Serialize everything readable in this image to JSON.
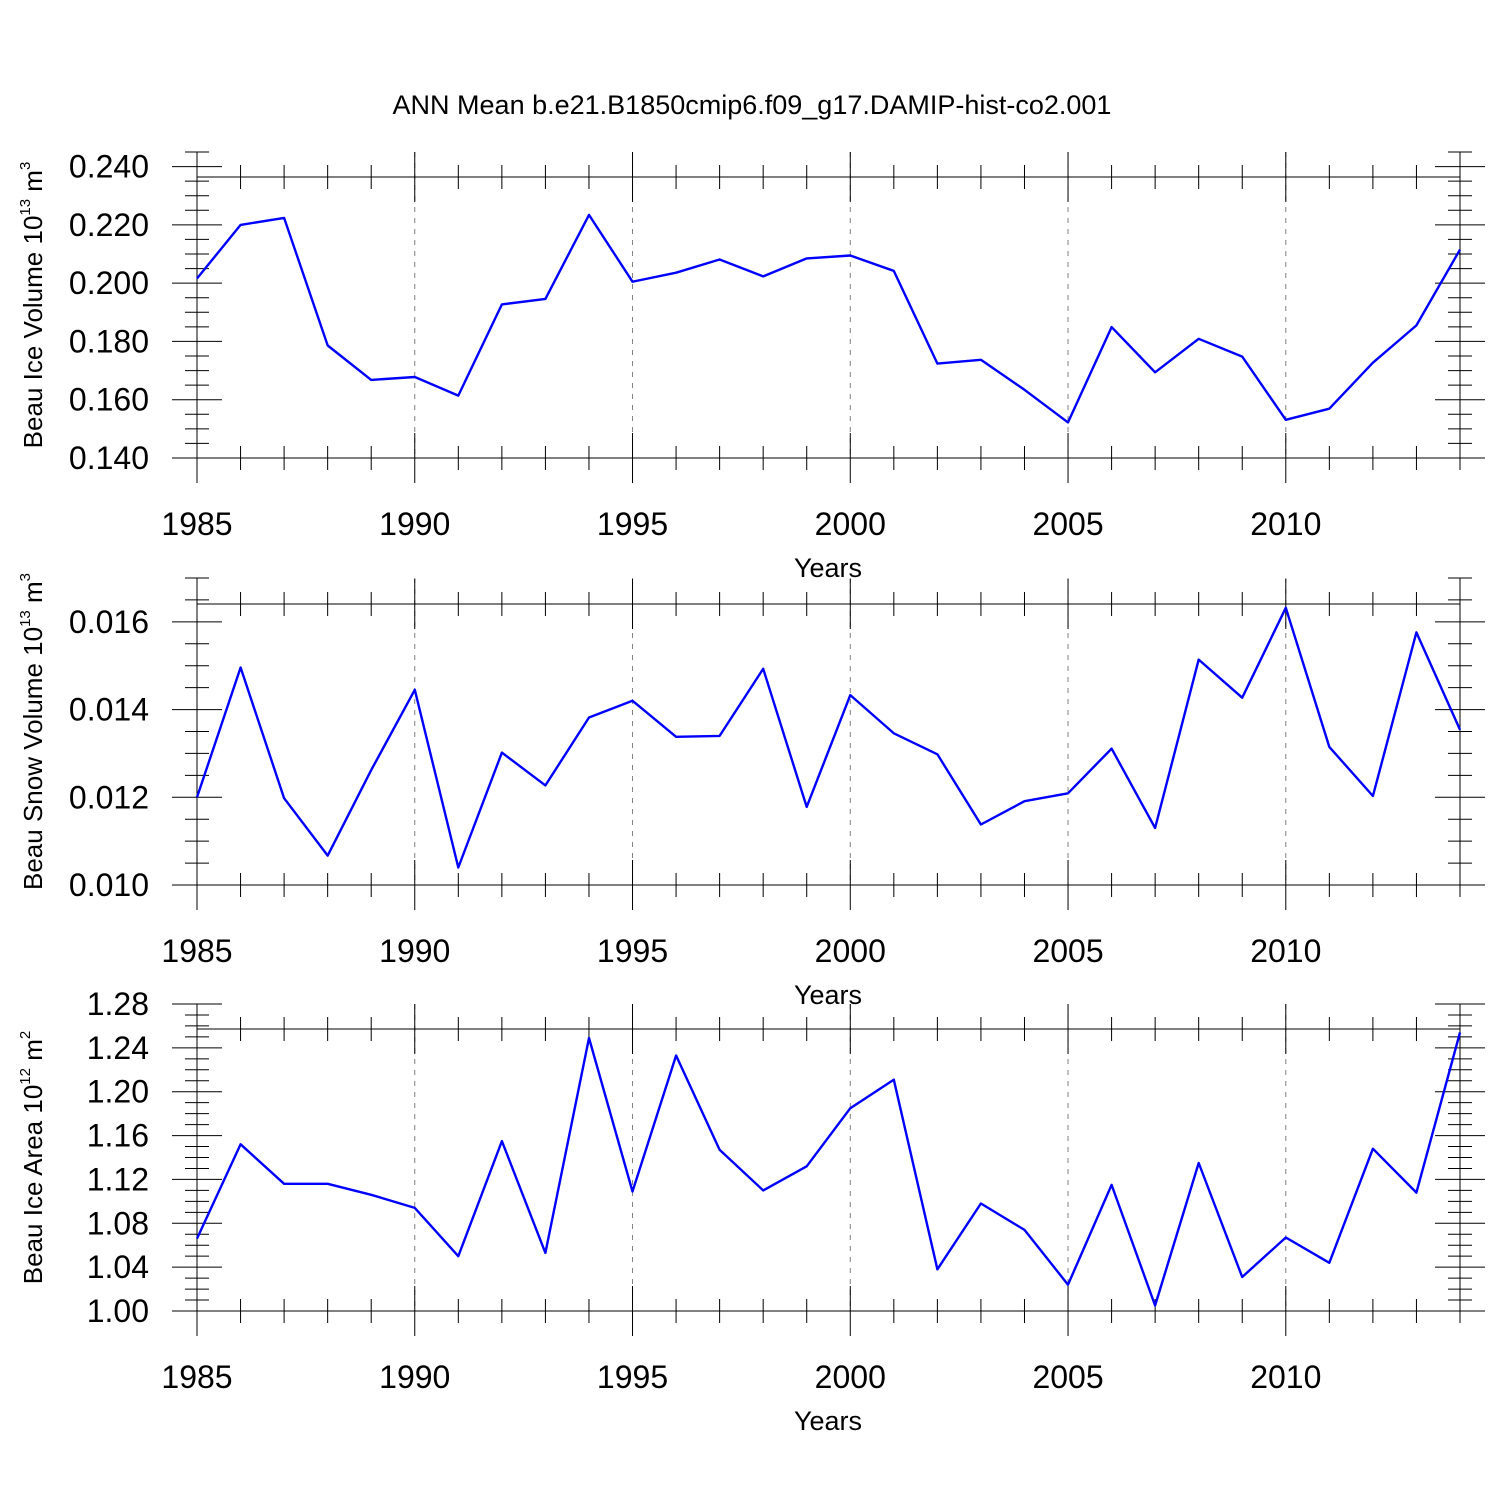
{
  "title": "ANN Mean b.e21.B1850cmip6.f09_g17.DAMIP-hist-co2.001",
  "line_color": "#0000ff",
  "chart_data": [
    {
      "type": "line",
      "title": "",
      "xlabel": "Years",
      "ylabel": {
        "main": "Beau Ice Volume 10",
        "sup1": "13",
        "mid": " m",
        "sup2": "3"
      },
      "xlim": [
        1985,
        2014
      ],
      "ylim": [
        0.14,
        0.245
      ],
      "xticks": [
        1985,
        1990,
        1995,
        2000,
        2005,
        2010
      ],
      "xtick_labels": [
        "1985",
        "1990",
        "1995",
        "2000",
        "2005",
        "2010"
      ],
      "yticks": [
        0.14,
        0.16,
        0.18,
        0.2,
        0.22,
        0.24
      ],
      "ytick_labels": [
        "0.140",
        "0.160",
        "0.180",
        "0.200",
        "0.220",
        "0.240"
      ],
      "grid": "vertical dashed at major x ticks",
      "x": [
        1985,
        1986,
        1987,
        1988,
        1989,
        1990,
        1991,
        1992,
        1993,
        1994,
        1995,
        1996,
        1997,
        1998,
        1999,
        2000,
        2001,
        2002,
        2003,
        2004,
        2005,
        2006,
        2007,
        2008,
        2009,
        2010,
        2011,
        2012,
        2013,
        2014
      ],
      "series": [
        {
          "name": "Beau Ice Volume",
          "values": [
            0.2016,
            0.22,
            0.2224,
            0.1786,
            0.1668,
            0.1678,
            0.1614,
            0.1927,
            0.1946,
            0.2234,
            0.2005,
            0.2036,
            0.2081,
            0.2023,
            0.2085,
            0.2095,
            0.2042,
            0.1724,
            0.1737,
            0.1634,
            0.1522,
            0.1849,
            0.1694,
            0.1809,
            0.1748,
            0.1531,
            0.1569,
            0.1727,
            0.1855,
            0.2115
          ]
        }
      ]
    },
    {
      "type": "line",
      "title": "",
      "xlabel": "Years",
      "ylabel": {
        "main": "Beau Snow Volume 10",
        "sup1": "13",
        "mid": " m",
        "sup2": "3"
      },
      "xlim": [
        1985,
        2014
      ],
      "ylim": [
        0.01,
        0.017
      ],
      "xticks": [
        1985,
        1990,
        1995,
        2000,
        2005,
        2010
      ],
      "xtick_labels": [
        "1985",
        "1990",
        "1995",
        "2000",
        "2005",
        "2010"
      ],
      "yticks": [
        0.01,
        0.012,
        0.014,
        0.016
      ],
      "ytick_labels": [
        "0.010",
        "0.012",
        "0.014",
        "0.016"
      ],
      "grid": "vertical dashed at major x ticks",
      "x": [
        1985,
        1986,
        1987,
        1988,
        1989,
        1990,
        1991,
        1992,
        1993,
        1994,
        1995,
        1996,
        1997,
        1998,
        1999,
        2000,
        2001,
        2002,
        2003,
        2004,
        2005,
        2006,
        2007,
        2008,
        2009,
        2010,
        2011,
        2012,
        2013,
        2014
      ],
      "series": [
        {
          "name": "Beau Snow Volume",
          "values": [
            0.012,
            0.01496,
            0.01198,
            0.01067,
            0.01262,
            0.01445,
            0.0104,
            0.01302,
            0.01227,
            0.01382,
            0.0142,
            0.01338,
            0.0134,
            0.01493,
            0.01178,
            0.01433,
            0.01346,
            0.01298,
            0.01138,
            0.01191,
            0.01209,
            0.01311,
            0.0113,
            0.01514,
            0.01427,
            0.01632,
            0.01315,
            0.01203,
            0.01576,
            0.01354
          ]
        }
      ]
    },
    {
      "type": "line",
      "title": "",
      "xlabel": "Years",
      "ylabel": {
        "main": "Beau Ice Area 10",
        "sup1": "12",
        "mid": " m",
        "sup2": "2"
      },
      "xlim": [
        1985,
        2014
      ],
      "ylim": [
        1.0,
        1.28
      ],
      "xticks": [
        1985,
        1990,
        1995,
        2000,
        2005,
        2010
      ],
      "xtick_labels": [
        "1985",
        "1990",
        "1995",
        "2000",
        "2005",
        "2010"
      ],
      "yticks": [
        1.0,
        1.04,
        1.08,
        1.12,
        1.16,
        1.2,
        1.24,
        1.28
      ],
      "ytick_labels": [
        "1.00",
        "1.04",
        "1.08",
        "1.12",
        "1.16",
        "1.20",
        "1.24",
        "1.28"
      ],
      "grid": "vertical dashed at major x ticks",
      "x": [
        1985,
        1986,
        1987,
        1988,
        1989,
        1990,
        1991,
        1992,
        1993,
        1994,
        1995,
        1996,
        1997,
        1998,
        1999,
        2000,
        2001,
        2002,
        2003,
        2004,
        2005,
        2006,
        2007,
        2008,
        2009,
        2010,
        2011,
        2012,
        2013,
        2014
      ],
      "series": [
        {
          "name": "Beau Ice Area",
          "values": [
            1.066,
            1.152,
            1.116,
            1.116,
            1.106,
            1.094,
            1.05,
            1.155,
            1.053,
            1.249,
            1.109,
            1.233,
            1.147,
            1.11,
            1.132,
            1.185,
            1.211,
            1.038,
            1.098,
            1.074,
            1.024,
            1.115,
            1.005,
            1.135,
            1.031,
            1.067,
            1.044,
            1.148,
            1.108,
            1.254
          ]
        }
      ]
    }
  ]
}
